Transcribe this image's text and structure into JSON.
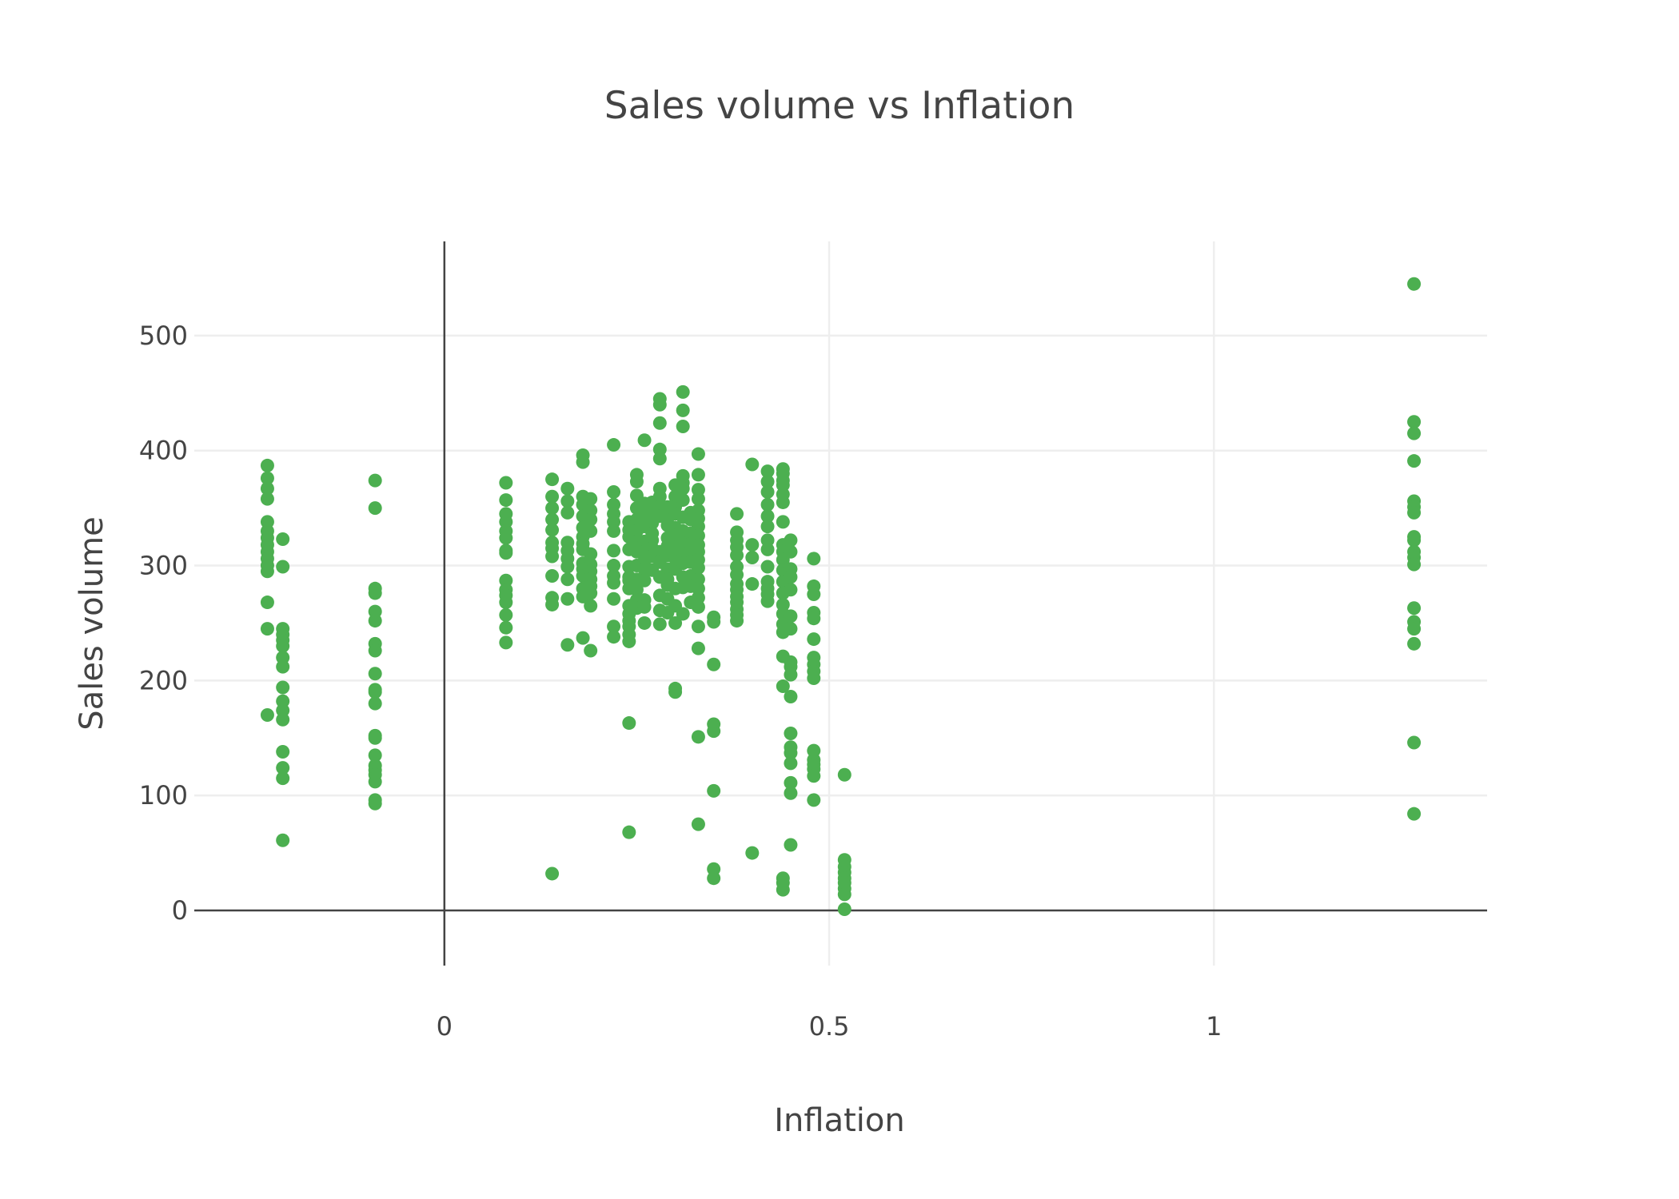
{
  "chart_data": {
    "type": "scatter",
    "title": "Sales volume vs Inflation",
    "xlabel": "Inflation",
    "ylabel": "Sales volume",
    "xlim": [
      -0.325,
      1.355
    ],
    "ylim": [
      -48,
      582
    ],
    "x_ticks": [
      0,
      0.5,
      1
    ],
    "x_tick_labels": [
      "0",
      "0.5",
      "1"
    ],
    "y_ticks": [
      0,
      100,
      200,
      300,
      400,
      500
    ],
    "y_tick_labels": [
      "0",
      "100",
      "200",
      "300",
      "400",
      "500"
    ],
    "grid": true,
    "legend": false,
    "marker_color": "#4caf50",
    "axis_color": "#444444",
    "grid_color": "#eeeeee",
    "x_columns": [
      -0.23,
      -0.21,
      -0.09,
      0.08,
      0.14,
      0.16,
      0.18,
      0.19,
      0.22,
      0.24,
      0.25,
      0.26,
      0.27,
      0.28,
      0.29,
      0.3,
      0.31,
      0.32,
      0.33,
      0.35,
      0.38,
      0.4,
      0.42,
      0.44,
      0.45,
      0.48,
      0.52,
      1.26
    ],
    "y_columns": [
      [
        387,
        376,
        367,
        358,
        338,
        330,
        324,
        318,
        312,
        306,
        300,
        295,
        268,
        245,
        170
      ],
      [
        323,
        299,
        245,
        240,
        235,
        230,
        220,
        212,
        194,
        182,
        174,
        166,
        138,
        124,
        115,
        61
      ],
      [
        374,
        350,
        280,
        276,
        260,
        252,
        232,
        226,
        206,
        192,
        190,
        180,
        152,
        150,
        135,
        126,
        122,
        118,
        112,
        96,
        93
      ],
      [
        372,
        357,
        345,
        338,
        330,
        324,
        313,
        311,
        287,
        279,
        274,
        268,
        257,
        246,
        233
      ],
      [
        375,
        360,
        350,
        340,
        331,
        320,
        315,
        308,
        291,
        272,
        266,
        32
      ],
      [
        367,
        356,
        346,
        320,
        313,
        306,
        299,
        288,
        271,
        231
      ],
      [
        396,
        390,
        360,
        353,
        343,
        333,
        325,
        319,
        314,
        302,
        297,
        291,
        280,
        273,
        237
      ],
      [
        358,
        348,
        340,
        330,
        310,
        301,
        295,
        288,
        282,
        276,
        265,
        226
      ],
      [
        405,
        364,
        353,
        345,
        338,
        330,
        313,
        300,
        291,
        285,
        271,
        247,
        238
      ],
      [
        338,
        331,
        325,
        314,
        299,
        290,
        287,
        280,
        265,
        258,
        252,
        247,
        240,
        234,
        163,
        68
      ],
      [
        379,
        373,
        361,
        350,
        340,
        330,
        321,
        312,
        300,
        288,
        279,
        270,
        263
      ],
      [
        409,
        354,
        345,
        334,
        321,
        312,
        304,
        297,
        287,
        270,
        264,
        250
      ],
      [
        355,
        345,
        337,
        328,
        322,
        315,
        308,
        296
      ],
      [
        445,
        440,
        424,
        401,
        393,
        367,
        360,
        351,
        343,
        312,
        303,
        290,
        274,
        261,
        249
      ],
      [
        351,
        341,
        335,
        324,
        317,
        309,
        297,
        288,
        283,
        271,
        259
      ],
      [
        370,
        360,
        351,
        345,
        333,
        326,
        316,
        306,
        297,
        280,
        265,
        250,
        193,
        190
      ],
      [
        451,
        435,
        421,
        378,
        372,
        367,
        357,
        342,
        330,
        322,
        311,
        302,
        290,
        281,
        258
      ],
      [
        346,
        340,
        328,
        319,
        310,
        303,
        291,
        282,
        268
      ],
      [
        397,
        379,
        366,
        358,
        348,
        341,
        334,
        326,
        318,
        312,
        305,
        298,
        288,
        280,
        272,
        264,
        247,
        228,
        151,
        75
      ],
      [
        255,
        251,
        214,
        162,
        156,
        104,
        36,
        28
      ],
      [
        345,
        329,
        322,
        316,
        309,
        299,
        292,
        284,
        279,
        273,
        268,
        262,
        257,
        252
      ],
      [
        388,
        318,
        307,
        284,
        50
      ],
      [
        382,
        373,
        364,
        353,
        343,
        334,
        322,
        314,
        299,
        286,
        280,
        275,
        269
      ],
      [
        384,
        380,
        374,
        370,
        362,
        355,
        338,
        318,
        312,
        305,
        296,
        286,
        276,
        266,
        258,
        249,
        242,
        221,
        195,
        28,
        24,
        18
      ],
      [
        322,
        312,
        297,
        290,
        279,
        256,
        245,
        216,
        212,
        205,
        186,
        154,
        142,
        137,
        128,
        111,
        102,
        57
      ],
      [
        306,
        282,
        275,
        259,
        254,
        236,
        220,
        214,
        208,
        202,
        139,
        131,
        127,
        123,
        117,
        96
      ],
      [
        118,
        44,
        38,
        33,
        28,
        24,
        19,
        14,
        1
      ],
      [
        545,
        425,
        415,
        391,
        356,
        351,
        346,
        325,
        322,
        312,
        307,
        301,
        263,
        251,
        245,
        232,
        146,
        84
      ]
    ]
  }
}
